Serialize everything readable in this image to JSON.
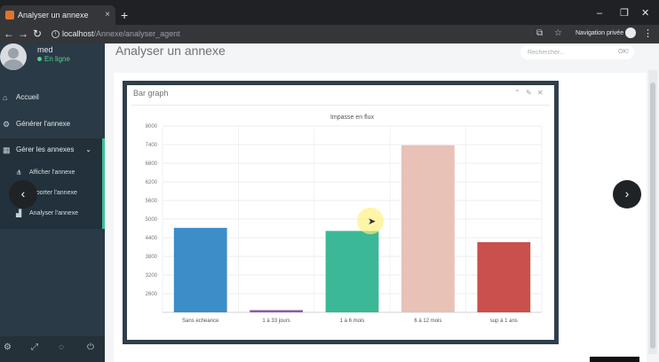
{
  "browser": {
    "tab_title": "Analyser un annexe",
    "tab_close": "×",
    "new_tab": "+",
    "url_host": "localhost",
    "url_path": "/Annexe/analyser_agent",
    "private_label": "Navigation privée",
    "controls": {
      "minimize": "–",
      "maximize": "❐",
      "close": "✕"
    }
  },
  "sidebar": {
    "user": {
      "name": "med",
      "status": "En ligne"
    },
    "items": [
      {
        "label": "Accueil",
        "icon": "home-icon"
      },
      {
        "label": "Générer l'annexe",
        "icon": "gears-icon"
      },
      {
        "label": "Gérer les annexes",
        "icon": "table-icon"
      }
    ],
    "subitems": [
      {
        "label": "Afficher l'annexe",
        "icon": "sitemap-icon"
      },
      {
        "label": "Importer l'annexe",
        "icon": "upload-icon"
      },
      {
        "label": "Analyser l'annexe",
        "icon": "bar-chart-icon"
      }
    ],
    "footer_icons": [
      "gear-icon",
      "expand-icon",
      "eye-slash-icon",
      "power-icon"
    ]
  },
  "main": {
    "page_title": "Analyser un annexe",
    "search_placeholder": "Rechercher...",
    "search_button": "OK!",
    "widget_title": "Bar graph"
  },
  "chart_data": {
    "type": "bar",
    "title": "Impasse en flux",
    "categories": [
      "Sans echeance",
      "1 à 33 jours",
      "1 à 6 mois",
      "6 à 12 mois",
      "sup à 1 ans"
    ],
    "values": [
      4720,
      2070,
      4620,
      7380,
      4260
    ],
    "colors": [
      "#3c8dc8",
      "#8a5aa8",
      "#3bb896",
      "#e8c1b7",
      "#c9504b"
    ],
    "ylim": [
      2000,
      8000
    ],
    "yticks": [
      "2600",
      "3200",
      "3800",
      "4400",
      "5000",
      "5600",
      "6200",
      "6800",
      "7400",
      "8000"
    ],
    "ytick_values": [
      2600,
      3200,
      3800,
      4400,
      5000,
      5600,
      6200,
      6800,
      7400,
      8000
    ],
    "grid": true
  }
}
